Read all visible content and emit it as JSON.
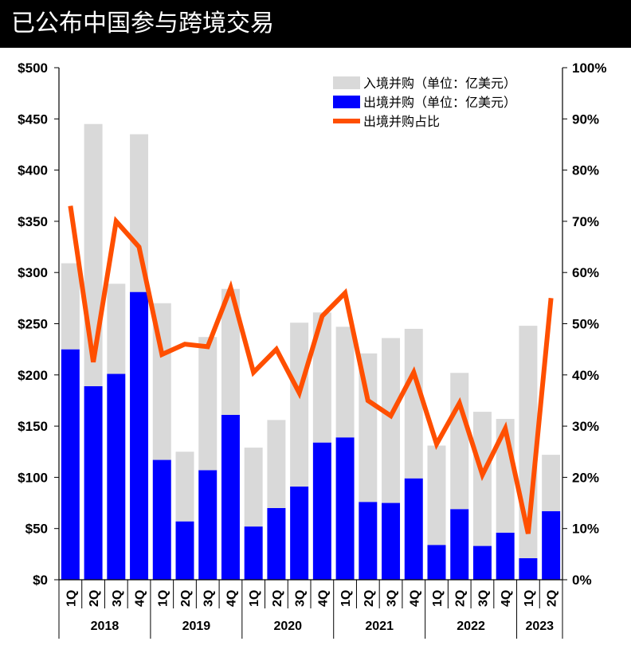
{
  "title": "已公布中国参与跨境交易",
  "colors": {
    "inbound": "#d9d9d9",
    "outbound": "#0000ff",
    "share_line": "#ff4f00",
    "title_bg": "#000000"
  },
  "chart_data": {
    "type": "bar",
    "categories": [
      "1Q",
      "2Q",
      "3Q",
      "4Q",
      "1Q",
      "2Q",
      "3Q",
      "4Q",
      "1Q",
      "2Q",
      "3Q",
      "4Q",
      "1Q",
      "2Q",
      "3Q",
      "4Q",
      "1Q",
      "2Q",
      "3Q",
      "4Q",
      "1Q",
      "2Q"
    ],
    "groups": [
      {
        "label": "2018",
        "count": 4
      },
      {
        "label": "2019",
        "count": 4
      },
      {
        "label": "2020",
        "count": 4
      },
      {
        "label": "2021",
        "count": 4
      },
      {
        "label": "2022",
        "count": 4
      },
      {
        "label": "2023",
        "count": 2
      }
    ],
    "series": [
      {
        "name": "入境并购（单位：亿美元）",
        "kind": "bar",
        "axis": "left",
        "values": [
          84,
          256,
          88,
          154,
          153,
          68,
          130,
          123,
          77,
          86,
          160,
          127,
          108,
          145,
          161,
          146,
          97,
          133,
          131,
          111,
          227,
          55
        ]
      },
      {
        "name": "出境并购（单位：亿美元）",
        "kind": "bar",
        "axis": "left",
        "values": [
          225,
          189,
          201,
          281,
          117,
          57,
          107,
          161,
          52,
          70,
          91,
          134,
          139,
          76,
          75,
          99,
          34,
          69,
          33,
          46,
          21,
          67
        ]
      },
      {
        "name": "出境并购占比",
        "kind": "line",
        "axis": "right",
        "values": [
          73,
          42.5,
          70,
          65,
          44,
          46,
          45.5,
          57,
          40.5,
          45,
          36.5,
          51.5,
          56,
          35,
          32,
          40.5,
          26.5,
          34.5,
          20.5,
          29.5,
          9,
          55
        ]
      }
    ],
    "stacked": true,
    "y_left": {
      "min": 0,
      "max": 500,
      "step": 50,
      "ticks": [
        "$0",
        "$50",
        "$100",
        "$150",
        "$200",
        "$250",
        "$300",
        "$350",
        "$400",
        "$450",
        "$500"
      ]
    },
    "y_right": {
      "min": 0,
      "max": 100,
      "step": 10,
      "ticks": [
        "0%",
        "10%",
        "20%",
        "30%",
        "40%",
        "50%",
        "60%",
        "70%",
        "80%",
        "90%",
        "100%"
      ]
    },
    "legend_position": "top-right",
    "grid": false
  }
}
